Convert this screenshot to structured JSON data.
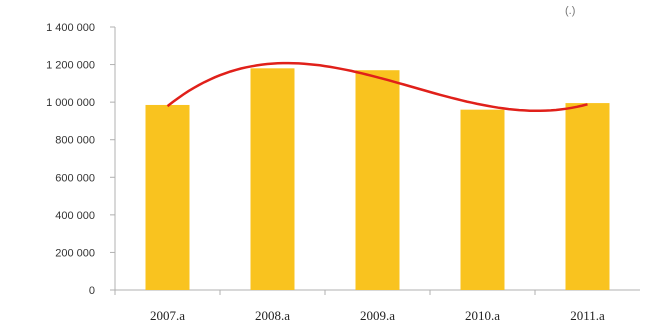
{
  "corner_note": "(.)",
  "chart_data": {
    "type": "bar",
    "categories": [
      "2007.a",
      "2008.a",
      "2009.a",
      "2010.a",
      "2011.a"
    ],
    "values": [
      985000,
      1180000,
      1170000,
      960000,
      995000
    ],
    "title": "",
    "xlabel": "",
    "ylabel": "",
    "ylim": [
      0,
      1400000
    ],
    "yticks": [
      0,
      200000,
      400000,
      600000,
      800000,
      1000000,
      1200000,
      1400000
    ],
    "ytick_labels": [
      "0",
      "200 000",
      "400 000",
      "600 000",
      "800 000",
      "1 000 000",
      "1 200 000",
      "1 400 000"
    ],
    "grid": false,
    "legend": "none",
    "trendline": {
      "type": "polynomial",
      "color": "#e0201a"
    },
    "colors": {
      "bar": "#f9c31f",
      "trend": "#e0201a",
      "axis": "#b0b0b0"
    }
  }
}
